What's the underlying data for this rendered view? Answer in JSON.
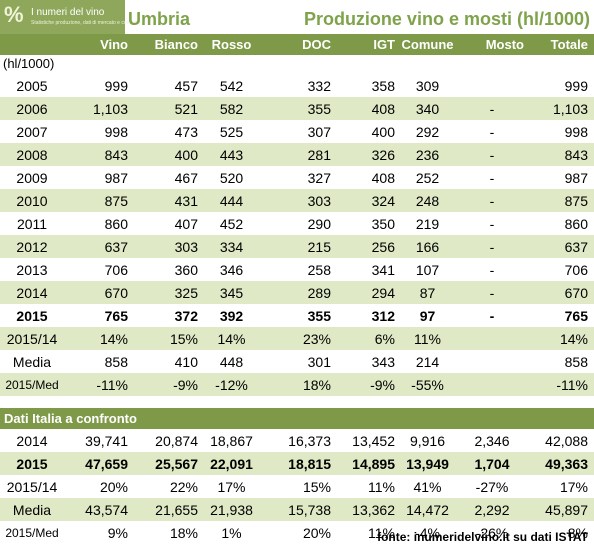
{
  "logo": {
    "name": "I numeri del vino",
    "tagline": "Statistiche produzione, dati di mercato e consumo"
  },
  "header": {
    "region": "Umbria",
    "title": "Produzione vino e mosti (hl/1000)"
  },
  "columns": [
    "Vino",
    "Bianco",
    "Rosso",
    "DOC",
    "IGT",
    "Comune",
    "Mosto",
    "Totale"
  ],
  "units": "(hl/1000)",
  "umbria_rows": [
    [
      "2005",
      "999",
      "457",
      "542",
      "332",
      "358",
      "309",
      "",
      "999"
    ],
    [
      "2006",
      "1,103",
      "521",
      "582",
      "355",
      "408",
      "340",
      "-",
      "1,103"
    ],
    [
      "2007",
      "998",
      "473",
      "525",
      "307",
      "400",
      "292",
      "-",
      "998"
    ],
    [
      "2008",
      "843",
      "400",
      "443",
      "281",
      "326",
      "236",
      "-",
      "843"
    ],
    [
      "2009",
      "987",
      "467",
      "520",
      "327",
      "408",
      "252",
      "-",
      "987"
    ],
    [
      "2010",
      "875",
      "431",
      "444",
      "303",
      "324",
      "248",
      "-",
      "875"
    ],
    [
      "2011",
      "860",
      "407",
      "452",
      "290",
      "350",
      "219",
      "-",
      "860"
    ],
    [
      "2012",
      "637",
      "303",
      "334",
      "215",
      "256",
      "166",
      "-",
      "637"
    ],
    [
      "2013",
      "706",
      "360",
      "346",
      "258",
      "341",
      "107",
      "-",
      "706"
    ],
    [
      "2014",
      "670",
      "325",
      "345",
      "289",
      "294",
      "87",
      "-",
      "670"
    ],
    [
      "2015",
      "765",
      "372",
      "392",
      "355",
      "312",
      "97",
      "-",
      "765"
    ],
    [
      "2015/14",
      "14%",
      "15%",
      "14%",
      "23%",
      "6%",
      "11%",
      "",
      "14%"
    ],
    [
      "Media",
      "858",
      "410",
      "448",
      "301",
      "343",
      "214",
      "",
      "858"
    ],
    [
      "2015/Med",
      "-11%",
      "-9%",
      "-12%",
      "18%",
      "-9%",
      "-55%",
      "",
      "-11%"
    ]
  ],
  "italia_section": "Dati Italia a confronto",
  "italia_rows": [
    [
      "2014",
      "39,741",
      "20,874",
      "18,867",
      "16,373",
      "13,452",
      "9,916",
      "2,346",
      "42,088"
    ],
    [
      "2015",
      "47,659",
      "25,567",
      "22,091",
      "18,815",
      "14,895",
      "13,949",
      "1,704",
      "49,363"
    ],
    [
      "2015/14",
      "20%",
      "22%",
      "17%",
      "15%",
      "11%",
      "41%",
      "-27%",
      "17%"
    ],
    [
      "Media",
      "43,574",
      "21,655",
      "21,938",
      "15,738",
      "13,362",
      "14,472",
      "2,292",
      "45,897"
    ],
    [
      "2015/Med",
      "9%",
      "18%",
      "1%",
      "20%",
      "11%",
      "-4%",
      "-26%",
      "8%"
    ]
  ],
  "footer": "fonte: inumeridelvino.it su dati ISTAT",
  "colors": {
    "accent": "#7e9a48",
    "stripe": "#dfe9c5",
    "title": "#7ea34b"
  }
}
